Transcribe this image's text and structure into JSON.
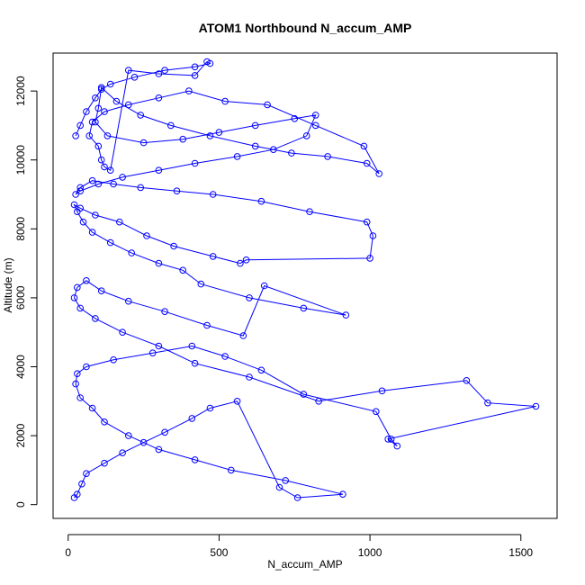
{
  "chart_data": {
    "type": "line",
    "title": "ATOM1 Northbound N_accum_AMP",
    "xlabel": "N_accum_AMP",
    "ylabel": "Altitude (m)",
    "xlim": [
      -50,
      1620
    ],
    "ylim": [
      -400,
      13100
    ],
    "xticks": [
      0,
      500,
      1000,
      1500
    ],
    "yticks": [
      0,
      2000,
      4000,
      6000,
      8000,
      10000,
      12000
    ],
    "grid": false,
    "legend": "none",
    "series_color": "#0000ff",
    "marker": "open-circle",
    "series": [
      {
        "x": [
          20,
          30,
          45,
          60,
          120,
          180,
          250,
          320,
          410,
          470,
          560,
          700,
          760,
          910,
          720,
          540,
          420,
          300,
          200,
          120,
          80,
          40,
          25,
          30,
          60,
          150,
          280,
          410,
          520,
          640,
          780,
          1020,
          1070,
          1090,
          1060,
          1550,
          1390,
          1320,
          1040,
          830,
          600,
          420,
          300,
          180,
          90,
          40,
          20,
          30,
          60,
          110,
          200,
          320,
          460,
          580,
          650,
          920,
          780,
          600,
          440,
          380,
          300,
          210,
          140,
          80,
          50,
          30,
          20,
          40,
          90,
          170,
          260,
          350,
          480,
          570,
          590,
          1000,
          1010,
          990,
          800,
          640,
          480,
          360,
          240,
          150,
          80,
          40,
          25,
          40,
          100,
          180,
          300,
          420,
          560,
          680,
          790,
          820,
          750,
          620,
          500,
          380,
          250,
          130,
          90,
          100,
          110,
          160,
          240,
          340,
          470,
          620,
          740,
          860,
          990,
          1030,
          980,
          820,
          660,
          520,
          400,
          300,
          200,
          120,
          80,
          70,
          100,
          110,
          120,
          140,
          200,
          300,
          420,
          460,
          470,
          420,
          320,
          220,
          140,
          110,
          90,
          60,
          40,
          25
        ],
        "y": [
          200,
          300,
          600,
          900,
          1200,
          1500,
          1800,
          2100,
          2500,
          2800,
          3000,
          500,
          200,
          300,
          700,
          1000,
          1300,
          1600,
          2000,
          2400,
          2800,
          3100,
          3500,
          3800,
          4000,
          4200,
          4400,
          4600,
          4300,
          3900,
          3200,
          2700,
          1900,
          1700,
          1900,
          2850,
          2950,
          3600,
          3300,
          3000,
          3700,
          4100,
          4600,
          5000,
          5400,
          5700,
          6000,
          6300,
          6500,
          6200,
          5900,
          5600,
          5200,
          4900,
          6350,
          5500,
          5700,
          6000,
          6400,
          6800,
          7000,
          7300,
          7600,
          7900,
          8200,
          8500,
          8700,
          8600,
          8400,
          8200,
          7800,
          7500,
          7200,
          7000,
          7100,
          7150,
          7800,
          8200,
          8500,
          8800,
          9000,
          9100,
          9200,
          9300,
          9400,
          9200,
          9000,
          9100,
          9300,
          9500,
          9700,
          9900,
          10100,
          10300,
          10700,
          11300,
          11200,
          11000,
          10800,
          10600,
          10500,
          10700,
          11100,
          11500,
          12100,
          11700,
          11300,
          11000,
          10700,
          10400,
          10200,
          10100,
          9900,
          9600,
          10400,
          11000,
          11600,
          11700,
          12000,
          11800,
          11600,
          11400,
          11100,
          10700,
          10400,
          10000,
          9800,
          9700,
          12600,
          12500,
          12450,
          12850,
          12800,
          12700,
          12600,
          12400,
          12200,
          12050,
          11800,
          11400,
          11000,
          10700
        ]
      }
    ]
  }
}
